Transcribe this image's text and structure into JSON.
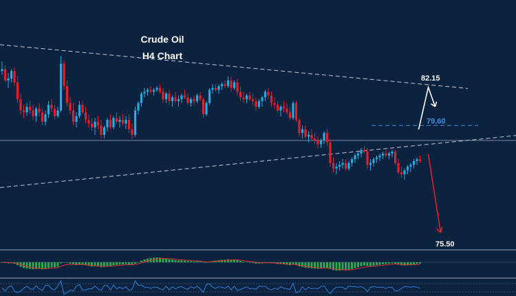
{
  "chart_data": {
    "type": "candlestick",
    "title": "Crude Oil",
    "subtitle": "H4 Chart",
    "colors": {
      "background": "#0c2340",
      "bull": "#2aa9e0",
      "bear": "#e0202a",
      "trendline": "#c8ccd6",
      "level_line": "#3a8fe0",
      "level_79_text": "#3a8fe0",
      "level_text": "#ffffff",
      "up_arrow": "#ffffff",
      "down_arrow": "#e0202a",
      "macd_hist": "#2fa84f",
      "macd_signal": "#e03030",
      "rsi_line": "#2a7fd8"
    },
    "levels": [
      {
        "label": "82.15",
        "value": 82.15
      },
      {
        "label": "79.60",
        "value": 79.6
      },
      {
        "label": "75.50",
        "value": 75.5
      }
    ],
    "trendlines": [
      {
        "name": "upper",
        "from": [
          0,
          83.9
        ],
        "to": [
          136,
          81.8
        ]
      },
      {
        "name": "lower",
        "from": [
          0,
          76.3
        ],
        "to": [
          150,
          78.8
        ]
      }
    ],
    "horizontal_line": 78.8,
    "arrows": [
      {
        "direction": "up",
        "target": "82.15"
      },
      {
        "direction": "down",
        "target": "75.50"
      }
    ],
    "ohlc": [
      [
        82.5,
        83.0,
        82.3,
        82.6
      ],
      [
        82.6,
        82.8,
        81.9,
        82.0
      ],
      [
        82.0,
        82.4,
        81.6,
        82.1
      ],
      [
        82.1,
        82.6,
        81.9,
        82.5
      ],
      [
        82.5,
        82.7,
        81.7,
        81.9
      ],
      [
        81.9,
        82.2,
        80.8,
        81.0
      ],
      [
        81.0,
        81.3,
        80.2,
        80.4
      ],
      [
        80.4,
        80.7,
        80.0,
        80.3
      ],
      [
        80.3,
        80.8,
        80.1,
        80.6
      ],
      [
        80.6,
        80.9,
        80.2,
        80.4
      ],
      [
        80.4,
        80.7,
        79.9,
        80.1
      ],
      [
        80.1,
        80.6,
        79.8,
        80.5
      ],
      [
        80.5,
        80.8,
        80.1,
        80.3
      ],
      [
        80.3,
        80.5,
        79.6,
        79.8
      ],
      [
        79.8,
        80.4,
        79.6,
        80.2
      ],
      [
        80.2,
        80.9,
        80.0,
        80.7
      ],
      [
        80.7,
        81.0,
        80.3,
        80.5
      ],
      [
        80.5,
        80.7,
        79.9,
        80.1
      ],
      [
        80.1,
        80.6,
        80.0,
        80.4
      ],
      [
        80.4,
        83.3,
        80.3,
        82.9
      ],
      [
        82.9,
        83.1,
        81.5,
        81.7
      ],
      [
        81.7,
        82.0,
        80.6,
        80.8
      ],
      [
        80.8,
        81.1,
        80.2,
        80.4
      ],
      [
        80.4,
        80.8,
        79.6,
        79.8
      ],
      [
        79.8,
        80.3,
        79.5,
        80.1
      ],
      [
        80.1,
        80.9,
        80.0,
        80.7
      ],
      [
        80.7,
        80.9,
        80.2,
        80.3
      ],
      [
        80.3,
        80.6,
        79.7,
        79.9
      ],
      [
        79.9,
        80.2,
        79.5,
        79.7
      ],
      [
        79.7,
        80.0,
        79.3,
        79.5
      ],
      [
        79.5,
        80.0,
        79.1,
        79.8
      ],
      [
        79.8,
        80.1,
        79.4,
        79.6
      ],
      [
        79.6,
        79.9,
        78.9,
        79.1
      ],
      [
        79.1,
        79.6,
        78.9,
        79.5
      ],
      [
        79.5,
        80.0,
        79.3,
        79.9
      ],
      [
        79.9,
        80.2,
        79.4,
        79.5
      ],
      [
        79.5,
        80.1,
        79.4,
        80.0
      ],
      [
        80.0,
        80.3,
        79.7,
        79.8
      ],
      [
        79.8,
        80.1,
        79.5,
        79.9
      ],
      [
        79.9,
        80.2,
        79.6,
        79.7
      ],
      [
        79.7,
        80.1,
        79.4,
        79.9
      ],
      [
        79.9,
        80.2,
        79.2,
        79.4
      ],
      [
        79.4,
        79.7,
        78.9,
        79.1
      ],
      [
        79.1,
        80.6,
        79.0,
        80.4
      ],
      [
        80.4,
        80.9,
        80.2,
        80.8
      ],
      [
        80.8,
        81.4,
        80.6,
        81.3
      ],
      [
        81.3,
        81.6,
        81.1,
        81.4
      ],
      [
        81.4,
        81.6,
        81.2,
        81.5
      ],
      [
        81.5,
        81.7,
        81.3,
        81.4
      ],
      [
        81.4,
        81.6,
        81.2,
        81.5
      ],
      [
        81.5,
        81.7,
        81.4,
        81.6
      ],
      [
        81.6,
        81.8,
        81.3,
        81.4
      ],
      [
        81.4,
        81.6,
        80.8,
        81.0
      ],
      [
        81.0,
        81.4,
        80.8,
        81.3
      ],
      [
        81.3,
        81.5,
        80.7,
        80.9
      ],
      [
        80.9,
        81.2,
        80.6,
        81.1
      ],
      [
        81.1,
        81.4,
        80.8,
        80.9
      ],
      [
        80.9,
        81.2,
        80.6,
        81.0
      ],
      [
        81.0,
        81.3,
        80.8,
        81.2
      ],
      [
        81.2,
        81.5,
        81.0,
        81.1
      ],
      [
        81.1,
        81.3,
        80.7,
        80.8
      ],
      [
        80.8,
        81.1,
        80.6,
        81.0
      ],
      [
        81.0,
        81.2,
        80.7,
        80.9
      ],
      [
        80.9,
        81.3,
        80.8,
        81.2
      ],
      [
        81.2,
        81.4,
        80.9,
        81.0
      ],
      [
        81.0,
        81.1,
        80.0,
        80.2
      ],
      [
        80.2,
        80.9,
        80.1,
        80.8
      ],
      [
        80.8,
        81.6,
        80.7,
        81.5
      ],
      [
        81.5,
        81.8,
        81.3,
        81.6
      ],
      [
        81.6,
        81.8,
        81.4,
        81.5
      ],
      [
        81.5,
        81.8,
        81.3,
        81.7
      ],
      [
        81.7,
        81.9,
        81.5,
        81.8
      ],
      [
        81.8,
        82.0,
        81.6,
        81.7
      ],
      [
        81.7,
        82.2,
        81.6,
        82.0
      ],
      [
        82.0,
        82.2,
        81.4,
        81.6
      ],
      [
        81.6,
        82.0,
        81.5,
        81.9
      ],
      [
        81.9,
        82.1,
        81.2,
        81.4
      ],
      [
        81.4,
        81.7,
        80.9,
        81.1
      ],
      [
        81.1,
        81.4,
        80.8,
        81.0
      ],
      [
        81.0,
        81.3,
        80.8,
        81.2
      ],
      [
        81.2,
        81.4,
        80.9,
        81.0
      ],
      [
        81.0,
        81.3,
        80.7,
        80.9
      ],
      [
        80.9,
        81.1,
        80.4,
        80.6
      ],
      [
        80.6,
        81.0,
        80.5,
        80.9
      ],
      [
        80.9,
        81.2,
        80.6,
        81.1
      ],
      [
        81.1,
        81.5,
        80.9,
        81.4
      ],
      [
        81.4,
        81.6,
        81.0,
        81.2
      ],
      [
        81.2,
        81.4,
        80.6,
        80.8
      ],
      [
        80.8,
        81.1,
        80.5,
        80.7
      ],
      [
        80.7,
        80.9,
        80.3,
        80.4
      ],
      [
        80.4,
        80.7,
        80.1,
        80.6
      ],
      [
        80.6,
        80.9,
        80.3,
        80.5
      ],
      [
        80.5,
        80.8,
        80.2,
        80.3
      ],
      [
        80.3,
        80.6,
        79.9,
        80.0
      ],
      [
        80.0,
        80.9,
        79.9,
        80.8
      ],
      [
        80.8,
        80.9,
        79.8,
        79.9
      ],
      [
        79.9,
        80.0,
        79.0,
        79.2
      ],
      [
        79.2,
        79.6,
        78.9,
        79.4
      ],
      [
        79.4,
        79.6,
        78.9,
        79.0
      ],
      [
        79.0,
        79.3,
        78.7,
        79.1
      ],
      [
        79.1,
        79.4,
        78.8,
        78.9
      ],
      [
        78.9,
        79.2,
        78.6,
        78.8
      ],
      [
        78.8,
        79.0,
        78.4,
        78.6
      ],
      [
        78.6,
        78.9,
        78.4,
        78.8
      ],
      [
        78.8,
        79.3,
        78.6,
        79.2
      ],
      [
        79.2,
        79.4,
        78.5,
        78.7
      ],
      [
        78.7,
        78.9,
        77.4,
        77.6
      ],
      [
        77.6,
        77.9,
        77.1,
        77.3
      ],
      [
        77.3,
        77.6,
        77.0,
        77.4
      ],
      [
        77.4,
        77.7,
        77.2,
        77.5
      ],
      [
        77.5,
        77.8,
        77.3,
        77.6
      ],
      [
        77.6,
        77.8,
        77.2,
        77.3
      ],
      [
        77.3,
        77.7,
        77.2,
        77.6
      ],
      [
        77.6,
        77.9,
        77.4,
        77.8
      ],
      [
        77.8,
        78.1,
        77.6,
        78.0
      ],
      [
        78.0,
        78.2,
        77.8,
        78.1
      ],
      [
        78.1,
        78.4,
        77.9,
        78.3
      ],
      [
        78.3,
        78.5,
        78.1,
        78.2
      ],
      [
        78.2,
        78.4,
        77.3,
        77.5
      ],
      [
        77.5,
        77.8,
        77.2,
        77.6
      ],
      [
        77.6,
        77.9,
        77.4,
        77.8
      ],
      [
        77.8,
        78.0,
        77.6,
        77.9
      ],
      [
        77.9,
        78.1,
        77.7,
        78.0
      ],
      [
        78.0,
        78.2,
        77.8,
        78.1
      ],
      [
        78.1,
        78.3,
        77.9,
        78.0
      ],
      [
        78.0,
        78.2,
        77.8,
        78.1
      ],
      [
        78.1,
        78.3,
        77.9,
        78.2
      ],
      [
        78.2,
        78.3,
        77.5,
        77.6
      ],
      [
        77.6,
        77.8,
        77.0,
        77.1
      ],
      [
        77.1,
        77.4,
        76.8,
        77.0
      ],
      [
        77.0,
        77.3,
        76.7,
        77.2
      ],
      [
        77.2,
        77.5,
        77.0,
        77.4
      ],
      [
        77.4,
        77.6,
        77.1,
        77.5
      ],
      [
        77.5,
        77.8,
        77.3,
        77.7
      ],
      [
        77.7,
        77.9,
        77.5,
        77.8
      ],
      [
        77.8,
        78.0,
        77.6,
        77.7
      ]
    ]
  }
}
